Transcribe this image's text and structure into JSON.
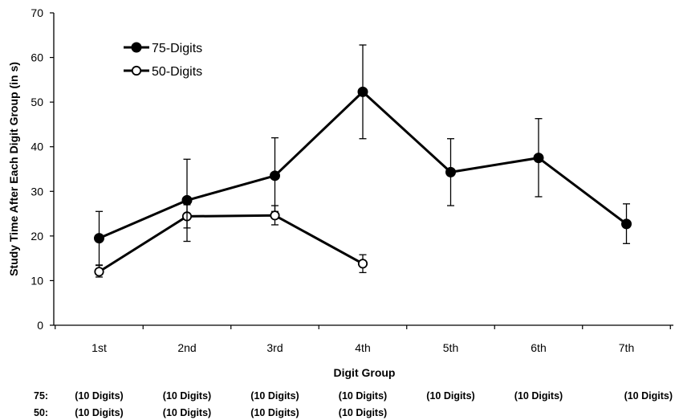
{
  "chart_data": {
    "type": "line",
    "xlabel": "Digit Group",
    "ylabel": "Study Time After Each Digit Group (in s)",
    "categories": [
      "1st",
      "2nd",
      "3rd",
      "4th",
      "5th",
      "6th",
      "7th"
    ],
    "ylim": [
      0,
      70
    ],
    "yticks": [
      0,
      10,
      20,
      30,
      40,
      50,
      60,
      70
    ],
    "grid": false,
    "legend_position": "top-left",
    "series": [
      {
        "name": "75-Digits",
        "marker": "filled-circle",
        "color": "#000000",
        "values": [
          19.5,
          28,
          33.5,
          52.3,
          34.3,
          37.5,
          22.7
        ],
        "error_low": [
          13.5,
          18.8,
          25.5,
          41.8,
          26.8,
          28.8,
          18.3
        ],
        "error_high": [
          25.5,
          37.2,
          42,
          62.8,
          41.8,
          46.3,
          27.2
        ]
      },
      {
        "name": "50-Digits",
        "marker": "open-circle",
        "color": "#000000",
        "values": [
          12,
          24.4,
          24.6,
          13.8,
          null,
          null,
          null
        ],
        "error_low": [
          10.8,
          21.8,
          22.5,
          11.8,
          null,
          null,
          null
        ],
        "error_high": [
          13.4,
          27,
          26.8,
          15.8,
          null,
          null,
          null
        ]
      }
    ],
    "group_notes": [
      {
        "label": "75:",
        "cells": [
          "(10 Digits)",
          "(10 Digits)",
          "(10 Digits)",
          "(10 Digits)",
          "(10 Digits)",
          "(10 Digits)",
          "(10 Digits)"
        ]
      },
      {
        "label": "50:",
        "cells": [
          "(10 Digits)",
          "(10 Digits)",
          "(10 Digits)",
          "(10 Digits)",
          "",
          "",
          ""
        ]
      }
    ]
  }
}
